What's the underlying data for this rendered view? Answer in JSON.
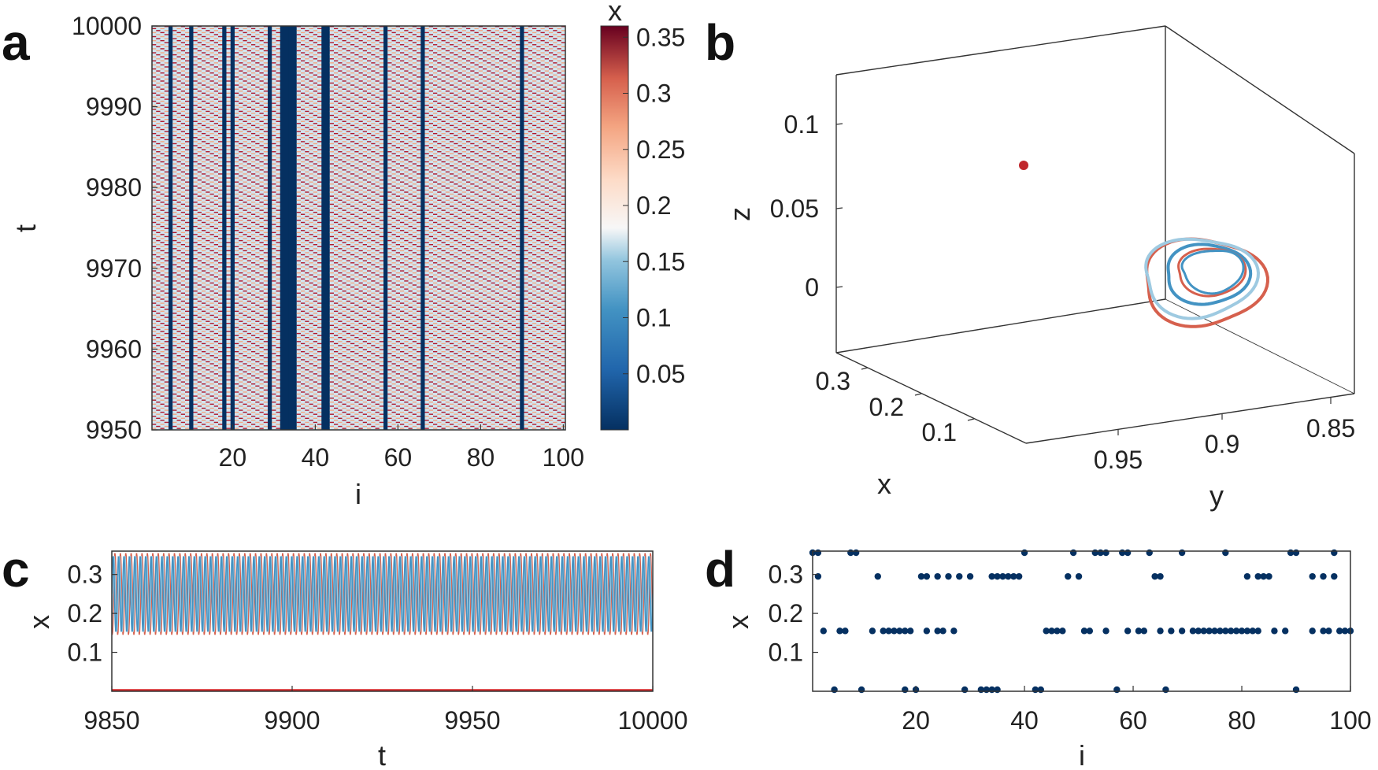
{
  "panels": {
    "a": "a",
    "b": "b",
    "c": "c",
    "d": "d"
  },
  "colors": {
    "dark_blue": "#053061",
    "mid_blue": "#4393c3",
    "light_blue": "#9ecae1",
    "pale": "#d1e5f0",
    "orange": "#f4a582",
    "red": "#d6604d",
    "dark_red": "#b2182b"
  },
  "chart_data": [
    {
      "id": "a",
      "type": "heatmap",
      "xlabel": "i",
      "ylabel": "t",
      "xlim": [
        0.5,
        100.5
      ],
      "ylim": [
        9950,
        10000
      ],
      "xticks": [
        20,
        40,
        60,
        80,
        100
      ],
      "yticks": [
        9950,
        9960,
        9970,
        9980,
        9990,
        10000
      ],
      "colorbar": {
        "label": "x",
        "range": [
          0,
          0.36
        ],
        "ticks": [
          0.05,
          0.1,
          0.15,
          0.2,
          0.25,
          0.3,
          0.35
        ]
      },
      "fixed_columns_x0": [
        5,
        10,
        18,
        20,
        29,
        32,
        33,
        34,
        35,
        42,
        43,
        57,
        66,
        90
      ],
      "row_period_t": 1,
      "levels": [
        0.155,
        0.295,
        0.35
      ]
    },
    {
      "id": "b",
      "type": "line",
      "xlabel": "x",
      "ylabel": "y",
      "zlabel": "z",
      "xticks": [
        0.1,
        0.2,
        0.3
      ],
      "yticks": [
        0.85,
        0.9,
        0.95
      ],
      "zticks": [
        0,
        0.05,
        0.1
      ],
      "fixed_point": {
        "x": 0.0,
        "y": 1.0,
        "z": 0.075
      }
    },
    {
      "id": "c",
      "type": "line",
      "xlabel": "t",
      "ylabel": "x",
      "xlim": [
        9850,
        10000
      ],
      "ylim": [
        0,
        0.36
      ],
      "xticks": [
        9850,
        9900,
        9950,
        10000
      ],
      "yticks": [
        0.1,
        0.2,
        0.3
      ],
      "oscillation": {
        "min": 0.145,
        "max": 0.355,
        "period": 1.5
      },
      "fixed_value": 0.0
    },
    {
      "id": "d",
      "type": "scatter",
      "xlabel": "i",
      "ylabel": "x",
      "xlim": [
        1,
        100
      ],
      "ylim": [
        0,
        0.36
      ],
      "xticks": [
        20,
        40,
        60,
        80,
        100
      ],
      "yticks": [
        0.1,
        0.2,
        0.3
      ],
      "points_x0": [
        5,
        10,
        18,
        20,
        29,
        32,
        33,
        34,
        35,
        42,
        43,
        57,
        66,
        90
      ],
      "points_x015": [
        3,
        6,
        7,
        12,
        14,
        15,
        16,
        17,
        18,
        19,
        22,
        24,
        25,
        27,
        44,
        45,
        46,
        47,
        51,
        52,
        55,
        59,
        61,
        62,
        65,
        67,
        69,
        71,
        72,
        73,
        74,
        75,
        76,
        77,
        78,
        79,
        80,
        81,
        82,
        83,
        86,
        88,
        93,
        95,
        96,
        98,
        99,
        100
      ],
      "points_x03": [
        2,
        13,
        21,
        22,
        24,
        26,
        28,
        30,
        34,
        35,
        36,
        37,
        38,
        39,
        48,
        50,
        64,
        65,
        81,
        83,
        84,
        85,
        93,
        95,
        97
      ],
      "points_x035": [
        1,
        2,
        8,
        9,
        40,
        49,
        53,
        54,
        55,
        58,
        59,
        63,
        69,
        77,
        89,
        90,
        97
      ]
    }
  ]
}
